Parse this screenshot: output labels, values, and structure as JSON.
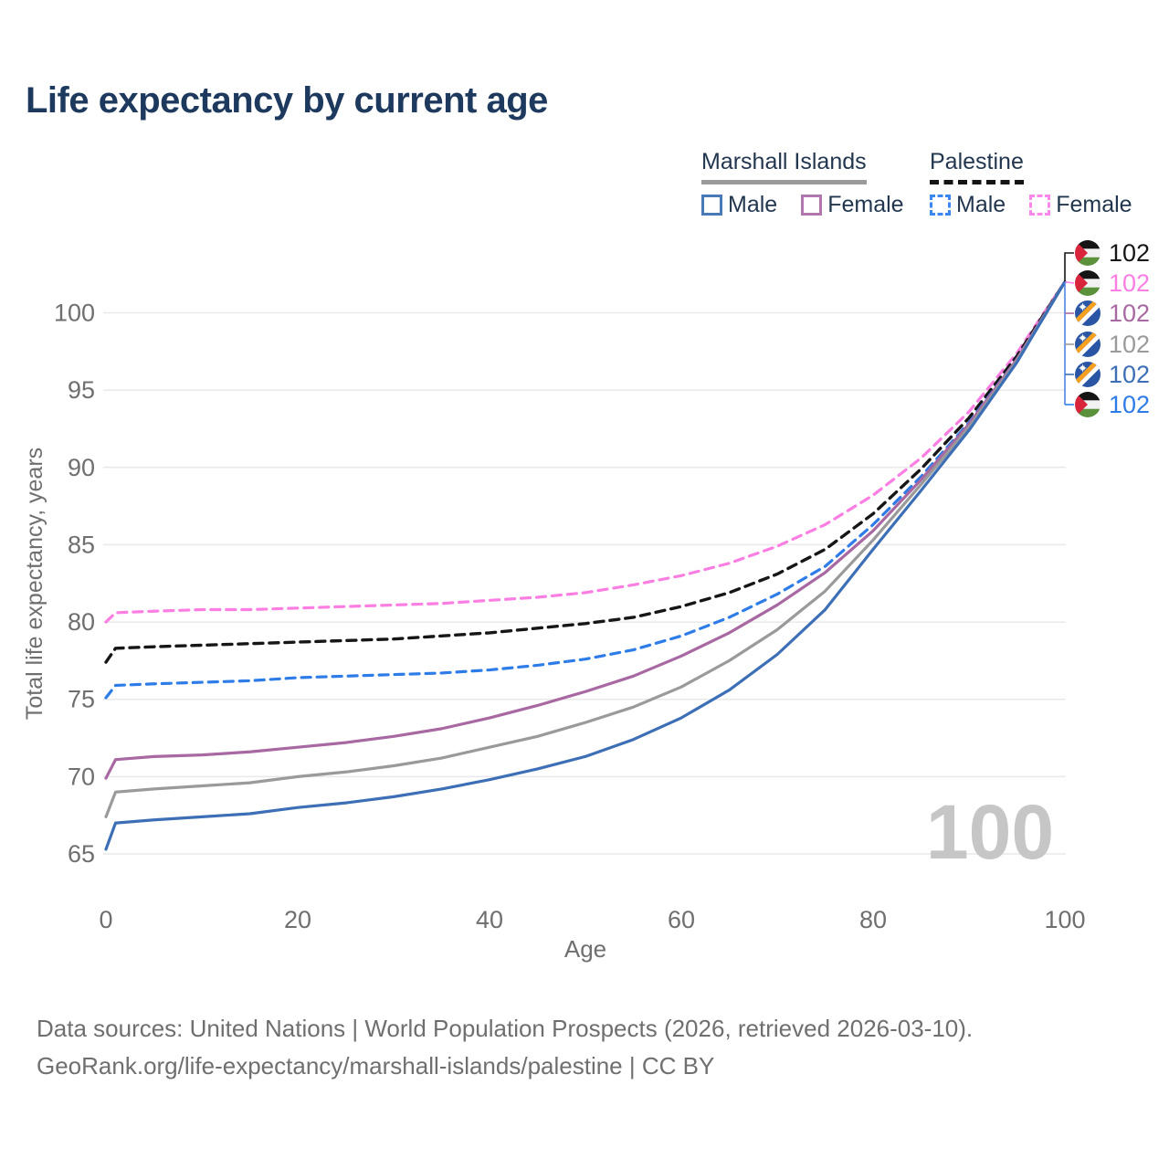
{
  "title": "Life expectancy by current age",
  "legend": {
    "groups": [
      {
        "label": "Marshall Islands",
        "style": "solid",
        "underline_color": "#9a9a9a",
        "items": [
          {
            "label": "Male",
            "color": "#4a7ab5"
          },
          {
            "label": "Female",
            "color": "#b076ae"
          }
        ]
      },
      {
        "label": "Palestine",
        "style": "dashed",
        "underline_color": "#141414",
        "items": [
          {
            "label": "Male",
            "color": "#3c87ef"
          },
          {
            "label": "Female",
            "color": "#fb86ec"
          }
        ]
      }
    ]
  },
  "chart_data": {
    "type": "line",
    "title": "Life expectancy by current age",
    "xlabel": "Age",
    "ylabel": "Total life expectancy, years",
    "watermark": "100",
    "xlim": [
      0,
      100
    ],
    "ylim": [
      63.5,
      103.5
    ],
    "xticks": [
      0,
      20,
      40,
      60,
      80,
      100
    ],
    "yticks": [
      65,
      70,
      75,
      80,
      85,
      90,
      95,
      100
    ],
    "grid": "horizontal",
    "legend_position": "top-right",
    "x": [
      0,
      1,
      5,
      10,
      15,
      20,
      25,
      30,
      35,
      40,
      45,
      50,
      55,
      60,
      65,
      70,
      75,
      80,
      85,
      90,
      95,
      100
    ],
    "series": [
      {
        "name": "Palestine Female",
        "country": "Palestine",
        "sex": "Female",
        "color": "#fb7ee3",
        "dashed": true,
        "values": [
          80.0,
          80.6,
          80.7,
          80.8,
          80.8,
          80.9,
          81.0,
          81.1,
          81.2,
          81.4,
          81.6,
          81.9,
          82.4,
          83.0,
          83.8,
          84.9,
          86.3,
          88.2,
          90.6,
          93.6,
          97.4,
          102
        ]
      },
      {
        "name": "Palestine Both sexes",
        "country": "Palestine",
        "sex": "Both sexes",
        "color": "#161616",
        "dashed": true,
        "values": [
          77.4,
          78.3,
          78.4,
          78.5,
          78.6,
          78.7,
          78.8,
          78.9,
          79.1,
          79.3,
          79.6,
          79.9,
          80.3,
          81.0,
          81.9,
          83.1,
          84.7,
          87.0,
          89.9,
          93.2,
          97.2,
          102
        ]
      },
      {
        "name": "Palestine Male",
        "country": "Palestine",
        "sex": "Male",
        "color": "#2e7ce8",
        "dashed": true,
        "values": [
          75.1,
          75.9,
          76.0,
          76.1,
          76.2,
          76.4,
          76.5,
          76.6,
          76.7,
          76.9,
          77.2,
          77.6,
          78.2,
          79.1,
          80.3,
          81.8,
          83.6,
          86.3,
          89.4,
          92.9,
          97.0,
          102
        ]
      },
      {
        "name": "Marshall Islands Female",
        "country": "Marshall Islands",
        "sex": "Female",
        "color": "#a868a2",
        "dashed": false,
        "values": [
          69.9,
          71.1,
          71.3,
          71.4,
          71.6,
          71.9,
          72.2,
          72.6,
          73.1,
          73.8,
          74.6,
          75.5,
          76.5,
          77.8,
          79.3,
          81.1,
          83.2,
          85.9,
          89.2,
          92.8,
          97.0,
          102
        ]
      },
      {
        "name": "Marshall Islands Both sexes",
        "country": "Marshall Islands",
        "sex": "Both sexes",
        "color": "#9a9a9a",
        "dashed": false,
        "values": [
          67.4,
          69.0,
          69.2,
          69.4,
          69.6,
          70.0,
          70.3,
          70.7,
          71.2,
          71.9,
          72.6,
          73.5,
          74.5,
          75.8,
          77.5,
          79.5,
          82.0,
          85.3,
          88.9,
          92.6,
          96.9,
          102
        ]
      },
      {
        "name": "Marshall Islands Male",
        "country": "Marshall Islands",
        "sex": "Male",
        "color": "#3d6fb6",
        "dashed": false,
        "values": [
          65.3,
          67.0,
          67.2,
          67.4,
          67.6,
          68.0,
          68.3,
          68.7,
          69.2,
          69.8,
          70.5,
          71.3,
          72.4,
          73.8,
          75.6,
          77.9,
          80.8,
          84.7,
          88.5,
          92.4,
          96.8,
          102
        ]
      }
    ],
    "end_labels": [
      {
        "flag": "palestine",
        "value": "102",
        "color": "#161616"
      },
      {
        "flag": "palestine",
        "value": "102",
        "color": "#fb7ee3"
      },
      {
        "flag": "marshall-islands",
        "value": "102",
        "color": "#a868a2"
      },
      {
        "flag": "marshall-islands",
        "value": "102",
        "color": "#9a9a9a"
      },
      {
        "flag": "marshall-islands",
        "value": "102",
        "color": "#3d6fb6"
      },
      {
        "flag": "palestine",
        "value": "102",
        "color": "#2e7ce8"
      }
    ]
  },
  "footer": {
    "line1": "Data sources: United Nations | World Population Prospects (2026, retrieved 2026-03-10).",
    "line2": "GeoRank.org/life-expectancy/marshall-islands/palestine | CC BY"
  }
}
